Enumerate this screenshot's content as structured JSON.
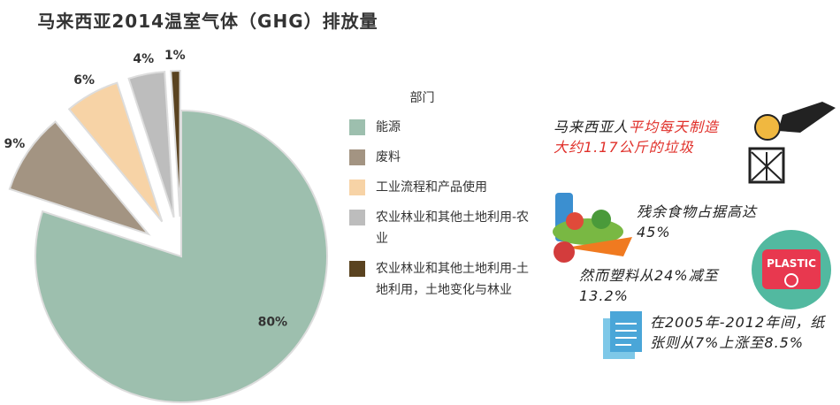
{
  "chart_data": {
    "type": "pie",
    "title": "马来西亚2014温室气体（GHG）排放量",
    "legend_title": "部门",
    "categories": [
      "能源",
      "废料",
      "工业流程和产品使用",
      "农业林业和其他土地利用-农业",
      "农业林业和其他土地利用-土地利用，土地变化与林业"
    ],
    "values": [
      80,
      9,
      6,
      4,
      1
    ],
    "value_labels": [
      "80%",
      "9%",
      "6%",
      "4%",
      "1%"
    ],
    "colors": [
      "#9dbfae",
      "#a39482",
      "#f7d3a6",
      "#bdbdbd",
      "#5a4320"
    ]
  },
  "annotations": [
    {
      "parts": [
        {
          "text": "马来西亚人",
          "color": "#222222"
        },
        {
          "text": "平均每天制造大约1.17公斤的垃圾",
          "color": "#e0302a"
        }
      ]
    },
    {
      "parts": [
        {
          "text": "残余食物占据高达45%",
          "color": "#222222"
        }
      ]
    },
    {
      "parts": [
        {
          "text": "然而塑料从24%减至13.2%",
          "color": "#222222"
        }
      ]
    },
    {
      "parts": [
        {
          "text": "在2005年-2012年间，纸张则从7%上涨至8.5%",
          "color": "#222222"
        }
      ]
    }
  ]
}
